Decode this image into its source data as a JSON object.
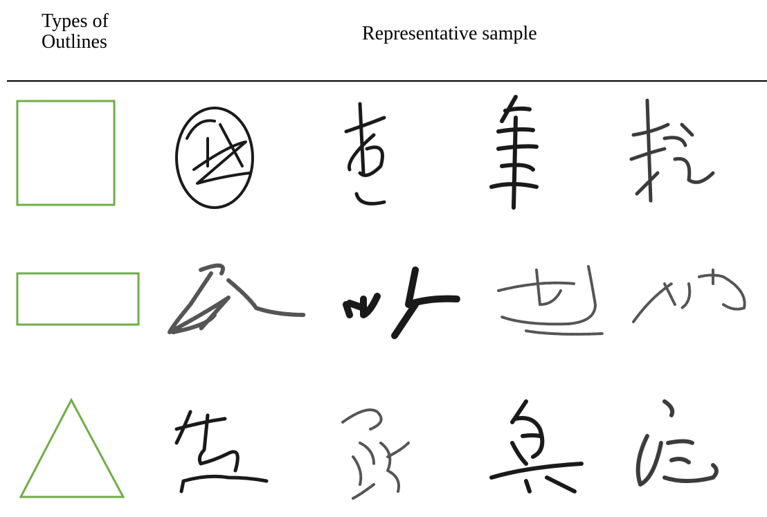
{
  "header": {
    "columns": [
      "Types of Outlines",
      "Representative sample"
    ]
  }
}
